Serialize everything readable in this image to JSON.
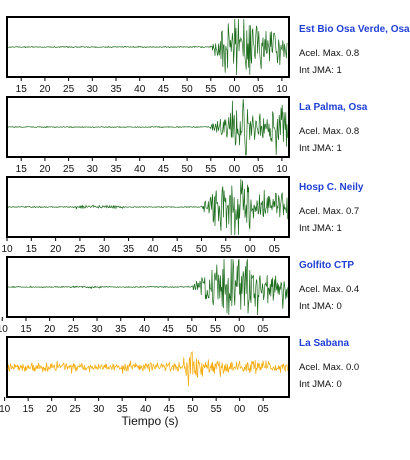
{
  "chart_data": [
    {
      "type": "line",
      "station": "Est Bio Osa Verde, Osa",
      "acel_label": "Acel. Max. 0.8",
      "jma_label": "Int JMA: 1",
      "color": "#1a6b1a",
      "x_ticks": [
        "15",
        "20",
        "25",
        "30",
        "35",
        "40",
        "45",
        "50",
        "55",
        "00",
        "05",
        "10"
      ],
      "x_range_seconds": [
        12,
        71.5
      ],
      "onset_tick": "55",
      "peak_near_tick": "00"
    },
    {
      "type": "line",
      "station": "La Palma, Osa",
      "acel_label": "Acel. Max. 0.8",
      "jma_label": "Int JMA: 1",
      "color": "#1a6b1a",
      "x_ticks": [
        "15",
        "20",
        "25",
        "30",
        "35",
        "40",
        "45",
        "50",
        "55",
        "00",
        "05",
        "10"
      ],
      "x_range_seconds": [
        12,
        71.5
      ],
      "onset_tick": "55",
      "peak_near_tick": "05"
    },
    {
      "type": "line",
      "station": "Hosp C. Neily",
      "acel_label": "Acel. Max. 0.7",
      "jma_label": "Int JMA: 1",
      "color": "#1a6b1a",
      "x_ticks": [
        "10",
        "15",
        "20",
        "25",
        "30",
        "35",
        "40",
        "45",
        "50",
        "55",
        "00",
        "05"
      ],
      "x_range_seconds": [
        10,
        68
      ],
      "onset_tick": "50",
      "peak_near_tick": "55"
    },
    {
      "type": "line",
      "station": "Golfito CTP",
      "acel_label": "Acel. Max. 0.4",
      "jma_label": "Int JMA: 0",
      "color": "#1a6b1a",
      "x_ticks": [
        "15",
        "20",
        "25",
        "30",
        "35",
        "40",
        "45",
        "50",
        "55",
        "00",
        "05",
        "10"
      ],
      "x_range_seconds": [
        11,
        70.5
      ],
      "onset_tick": "50",
      "peak_near_tick": "00"
    },
    {
      "type": "line",
      "station": "La Sabana",
      "acel_label": "Acel. Max. 0.0",
      "jma_label": "Int JMA: 0",
      "color": "#f5a800",
      "x_ticks": [
        "15",
        "20",
        "25",
        "30",
        "35",
        "40",
        "45",
        "50",
        "55",
        "00",
        "05",
        "10"
      ],
      "x_range_seconds": [
        10.5,
        70.5
      ],
      "onset_tick": "50",
      "peak_near_tick": "50"
    }
  ],
  "xlabel": "Tiempo (s)"
}
